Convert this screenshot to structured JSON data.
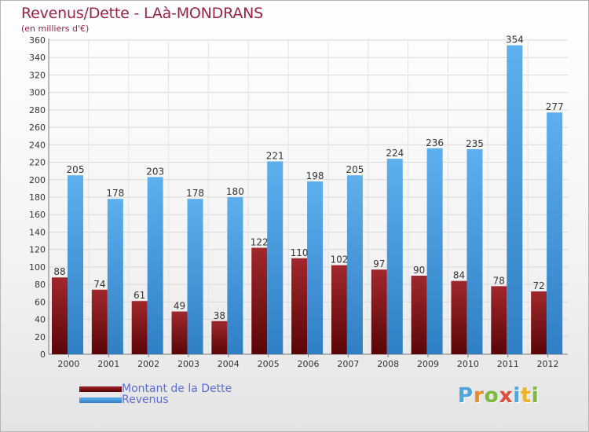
{
  "chart_data": {
    "type": "bar",
    "title": "Revenus/Dette - LAà-MONDRANS",
    "subtitle": "(en milliers d'€)",
    "xlabel": "",
    "ylabel": "",
    "ylim": [
      0,
      360
    ],
    "ytick_step": 20,
    "grid": true,
    "legend_position": "bottom-left",
    "categories": [
      "2000",
      "2001",
      "2002",
      "2003",
      "2004",
      "2005",
      "2006",
      "2007",
      "2008",
      "2009",
      "2010",
      "2011",
      "2012"
    ],
    "series": [
      {
        "name": "Montant de la Dette",
        "color": "#8a1518",
        "values": [
          88,
          74,
          61,
          49,
          38,
          122,
          110,
          102,
          97,
          90,
          84,
          78,
          72
        ]
      },
      {
        "name": "Revenus",
        "color": "#4d9fe0",
        "values": [
          205,
          178,
          203,
          178,
          180,
          221,
          198,
          205,
          224,
          236,
          235,
          354,
          277
        ]
      }
    ]
  },
  "branding": {
    "logo_letters": [
      "P",
      "r",
      "o",
      "x",
      "i",
      "t",
      "i"
    ],
    "logo_colors": [
      "#4fa6de",
      "#f08a24",
      "#7cba3b",
      "#e34c3a",
      "#4fa6de",
      "#f0b21f",
      "#7cba3b"
    ]
  }
}
